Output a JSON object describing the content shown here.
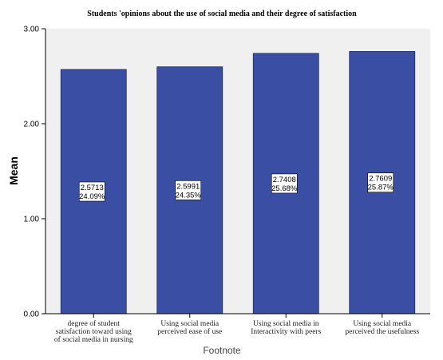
{
  "chart_data": {
    "type": "bar",
    "title": "Students 'opinions about the use of social media and their degree of satisfaction",
    "xlabel": "Footnote",
    "ylabel": "Mean",
    "ylim": [
      0,
      3
    ],
    "y_ticks": [
      "0.00",
      "1.00",
      "2.00",
      "3.00"
    ],
    "grid": false,
    "categories": [
      [
        "degree of student",
        "satisfaction toward using",
        "of social media in nursing"
      ],
      [
        "Using social media",
        "perceived ease of use"
      ],
      [
        "Using social media in",
        "Interactivity with peers"
      ],
      [
        "Using social media",
        "perceived the usefulness"
      ]
    ],
    "values": [
      2.5713,
      2.5991,
      2.7408,
      2.7609
    ],
    "value_labels": [
      "2.5713",
      "2.5991",
      "2.7408",
      "2.7609"
    ],
    "percent_labels": [
      "24.09%",
      "24.35%",
      "25.68%",
      "25.87%"
    ],
    "colors": {
      "bar": "#3A4FA3",
      "bar_stroke": "#1f2a66",
      "plot_bg": "#F0F0F0",
      "axis": "#000000"
    }
  }
}
